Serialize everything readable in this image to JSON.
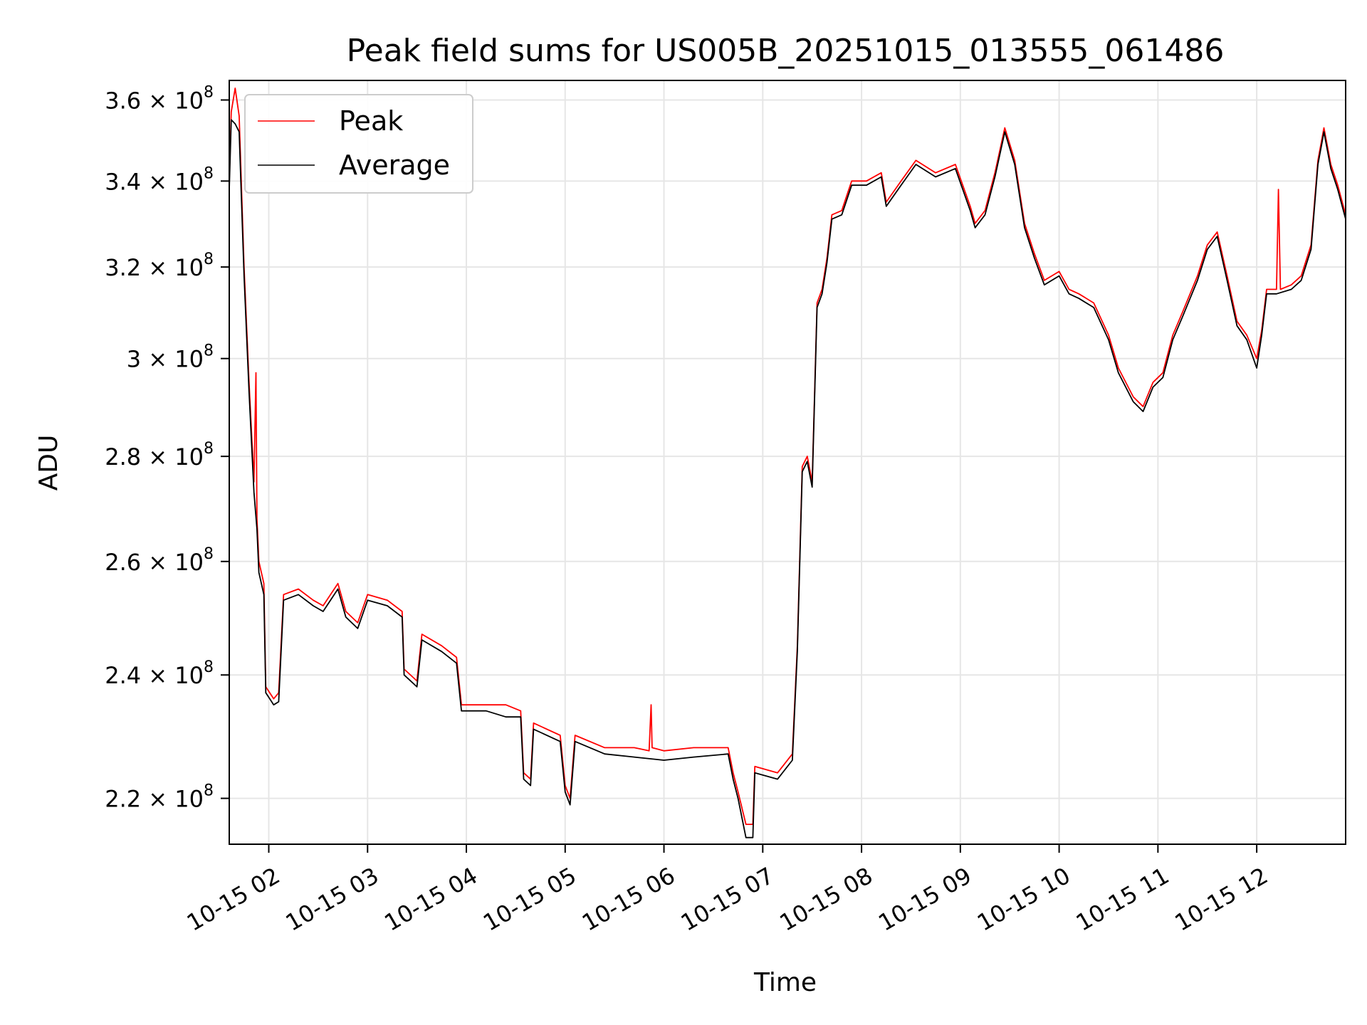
{
  "chart_data": {
    "type": "line",
    "title": "Peak field sums for US005B_20251015_013555_061486",
    "xlabel": "Time",
    "ylabel": "ADU",
    "yscale": "log",
    "xlim": [
      1.6,
      12.9
    ],
    "ylim": [
      213000000.0,
      365000000.0
    ],
    "grid": true,
    "legend_position": "upper-left",
    "x_ticks": [
      {
        "value": 2,
        "label": "10-15 02"
      },
      {
        "value": 3,
        "label": "10-15 03"
      },
      {
        "value": 4,
        "label": "10-15 04"
      },
      {
        "value": 5,
        "label": "10-15 05"
      },
      {
        "value": 6,
        "label": "10-15 06"
      },
      {
        "value": 7,
        "label": "10-15 07"
      },
      {
        "value": 8,
        "label": "10-15 08"
      },
      {
        "value": 9,
        "label": "10-15 09"
      },
      {
        "value": 10,
        "label": "10-15 10"
      },
      {
        "value": 11,
        "label": "10-15 11"
      },
      {
        "value": 12,
        "label": "10-15 12"
      }
    ],
    "y_ticks": [
      {
        "value": 220000000.0,
        "base": "2.2 × 10",
        "exp": "8"
      },
      {
        "value": 240000000.0,
        "base": "2.4 × 10",
        "exp": "8"
      },
      {
        "value": 260000000.0,
        "base": "2.6 × 10",
        "exp": "8"
      },
      {
        "value": 280000000.0,
        "base": "2.8 × 10",
        "exp": "8"
      },
      {
        "value": 300000000.0,
        "base": "3 × 10",
        "exp": "8"
      },
      {
        "value": 320000000.0,
        "base": "3.2 × 10",
        "exp": "8"
      },
      {
        "value": 340000000.0,
        "base": "3.4 × 10",
        "exp": "8"
      },
      {
        "value": 360000000.0,
        "base": "3.6 × 10",
        "exp": "8"
      }
    ],
    "series": [
      {
        "name": "Peak",
        "color": "#ff0000",
        "points": [
          [
            1.6,
            340000000.0
          ],
          [
            1.62,
            357000000.0
          ],
          [
            1.66,
            363000000.0
          ],
          [
            1.7,
            356000000.0
          ],
          [
            1.75,
            320000000.0
          ],
          [
            1.8,
            295000000.0
          ],
          [
            1.85,
            275000000.0
          ],
          [
            1.87,
            297000000.0
          ],
          [
            1.88,
            268000000.0
          ],
          [
            1.9,
            260000000.0
          ],
          [
            1.95,
            256000000.0
          ],
          [
            1.97,
            238000000.0
          ],
          [
            2.05,
            236000000.0
          ],
          [
            2.1,
            237000000.0
          ],
          [
            2.15,
            254000000.0
          ],
          [
            2.3,
            255000000.0
          ],
          [
            2.45,
            253000000.0
          ],
          [
            2.55,
            252000000.0
          ],
          [
            2.7,
            256000000.0
          ],
          [
            2.78,
            251000000.0
          ],
          [
            2.9,
            249000000.0
          ],
          [
            3.0,
            254000000.0
          ],
          [
            3.2,
            253000000.0
          ],
          [
            3.35,
            251000000.0
          ],
          [
            3.37,
            241000000.0
          ],
          [
            3.5,
            239000000.0
          ],
          [
            3.55,
            247000000.0
          ],
          [
            3.75,
            245000000.0
          ],
          [
            3.9,
            243000000.0
          ],
          [
            3.95,
            235000000.0
          ],
          [
            4.2,
            235000000.0
          ],
          [
            4.4,
            235000000.0
          ],
          [
            4.55,
            234000000.0
          ],
          [
            4.58,
            224000000.0
          ],
          [
            4.65,
            223000000.0
          ],
          [
            4.68,
            232000000.0
          ],
          [
            4.95,
            230000000.0
          ],
          [
            5.0,
            222000000.0
          ],
          [
            5.05,
            220000000.0
          ],
          [
            5.1,
            230000000.0
          ],
          [
            5.4,
            228000000.0
          ],
          [
            5.7,
            228000000.0
          ],
          [
            5.85,
            227500000.0
          ],
          [
            5.87,
            235000000.0
          ],
          [
            5.88,
            228000000.0
          ],
          [
            6.0,
            227500000.0
          ],
          [
            6.3,
            228000000.0
          ],
          [
            6.65,
            228000000.0
          ],
          [
            6.7,
            224000000.0
          ],
          [
            6.75,
            221000000.0
          ],
          [
            6.83,
            216000000.0
          ],
          [
            6.9,
            216000000.0
          ],
          [
            6.92,
            225000000.0
          ],
          [
            7.15,
            224000000.0
          ],
          [
            7.3,
            227000000.0
          ],
          [
            7.35,
            245000000.0
          ],
          [
            7.4,
            278000000.0
          ],
          [
            7.45,
            280000000.0
          ],
          [
            7.5,
            275000000.0
          ],
          [
            7.55,
            312000000.0
          ],
          [
            7.6,
            315000000.0
          ],
          [
            7.65,
            322000000.0
          ],
          [
            7.7,
            332000000.0
          ],
          [
            7.8,
            333000000.0
          ],
          [
            7.9,
            340000000.0
          ],
          [
            8.05,
            340000000.0
          ],
          [
            8.2,
            342000000.0
          ],
          [
            8.25,
            335000000.0
          ],
          [
            8.4,
            340000000.0
          ],
          [
            8.55,
            345000000.0
          ],
          [
            8.75,
            342000000.0
          ],
          [
            8.95,
            344000000.0
          ],
          [
            9.1,
            334000000.0
          ],
          [
            9.15,
            330000000.0
          ],
          [
            9.25,
            333000000.0
          ],
          [
            9.35,
            342000000.0
          ],
          [
            9.45,
            353000000.0
          ],
          [
            9.55,
            345000000.0
          ],
          [
            9.65,
            330000000.0
          ],
          [
            9.75,
            323000000.0
          ],
          [
            9.85,
            317000000.0
          ],
          [
            10.0,
            319000000.0
          ],
          [
            10.1,
            315000000.0
          ],
          [
            10.2,
            314000000.0
          ],
          [
            10.35,
            312000000.0
          ],
          [
            10.5,
            305000000.0
          ],
          [
            10.6,
            298000000.0
          ],
          [
            10.75,
            292000000.0
          ],
          [
            10.85,
            290000000.0
          ],
          [
            10.95,
            295000000.0
          ],
          [
            11.05,
            297000000.0
          ],
          [
            11.15,
            305000000.0
          ],
          [
            11.25,
            310000000.0
          ],
          [
            11.4,
            318000000.0
          ],
          [
            11.5,
            325000000.0
          ],
          [
            11.6,
            328000000.0
          ],
          [
            11.7,
            318000000.0
          ],
          [
            11.8,
            308000000.0
          ],
          [
            11.9,
            305000000.0
          ],
          [
            12.0,
            300000000.0
          ],
          [
            12.05,
            306000000.0
          ],
          [
            12.1,
            315000000.0
          ],
          [
            12.2,
            315000000.0
          ],
          [
            12.22,
            338000000.0
          ],
          [
            12.24,
            315000000.0
          ],
          [
            12.35,
            316000000.0
          ],
          [
            12.45,
            318000000.0
          ],
          [
            12.55,
            325000000.0
          ],
          [
            12.62,
            345000000.0
          ],
          [
            12.68,
            353000000.0
          ],
          [
            12.75,
            344000000.0
          ],
          [
            12.82,
            339000000.0
          ],
          [
            12.9,
            332000000.0
          ]
        ]
      },
      {
        "name": "Average",
        "color": "#000000",
        "points": [
          [
            1.6,
            338000000.0
          ],
          [
            1.62,
            355000000.0
          ],
          [
            1.66,
            354000000.0
          ],
          [
            1.7,
            352000000.0
          ],
          [
            1.75,
            318000000.0
          ],
          [
            1.8,
            293000000.0
          ],
          [
            1.85,
            273000000.0
          ],
          [
            1.88,
            266000000.0
          ],
          [
            1.9,
            258000000.0
          ],
          [
            1.95,
            254000000.0
          ],
          [
            1.97,
            237000000.0
          ],
          [
            2.05,
            235000000.0
          ],
          [
            2.1,
            235500000.0
          ],
          [
            2.15,
            253000000.0
          ],
          [
            2.3,
            254000000.0
          ],
          [
            2.45,
            252000000.0
          ],
          [
            2.55,
            251000000.0
          ],
          [
            2.7,
            255000000.0
          ],
          [
            2.78,
            250000000.0
          ],
          [
            2.9,
            248000000.0
          ],
          [
            3.0,
            253000000.0
          ],
          [
            3.2,
            252000000.0
          ],
          [
            3.35,
            250000000.0
          ],
          [
            3.37,
            240000000.0
          ],
          [
            3.5,
            238000000.0
          ],
          [
            3.55,
            246000000.0
          ],
          [
            3.75,
            244000000.0
          ],
          [
            3.9,
            242000000.0
          ],
          [
            3.95,
            234000000.0
          ],
          [
            4.2,
            234000000.0
          ],
          [
            4.4,
            233000000.0
          ],
          [
            4.55,
            233000000.0
          ],
          [
            4.58,
            223000000.0
          ],
          [
            4.65,
            222000000.0
          ],
          [
            4.68,
            231000000.0
          ],
          [
            4.95,
            229000000.0
          ],
          [
            5.0,
            221000000.0
          ],
          [
            5.05,
            219000000.0
          ],
          [
            5.1,
            229000000.0
          ],
          [
            5.4,
            227000000.0
          ],
          [
            5.7,
            226500000.0
          ],
          [
            6.0,
            226000000.0
          ],
          [
            6.3,
            226500000.0
          ],
          [
            6.65,
            227000000.0
          ],
          [
            6.7,
            223000000.0
          ],
          [
            6.75,
            220000000.0
          ],
          [
            6.83,
            214000000.0
          ],
          [
            6.9,
            214000000.0
          ],
          [
            6.92,
            224000000.0
          ],
          [
            7.15,
            223000000.0
          ],
          [
            7.3,
            226000000.0
          ],
          [
            7.35,
            244000000.0
          ],
          [
            7.4,
            277000000.0
          ],
          [
            7.45,
            279000000.0
          ],
          [
            7.5,
            274000000.0
          ],
          [
            7.55,
            311000000.0
          ],
          [
            7.6,
            314000000.0
          ],
          [
            7.65,
            321000000.0
          ],
          [
            7.7,
            331000000.0
          ],
          [
            7.8,
            332000000.0
          ],
          [
            7.9,
            339000000.0
          ],
          [
            8.05,
            339000000.0
          ],
          [
            8.2,
            341000000.0
          ],
          [
            8.25,
            334000000.0
          ],
          [
            8.4,
            339000000.0
          ],
          [
            8.55,
            344000000.0
          ],
          [
            8.75,
            341000000.0
          ],
          [
            8.95,
            343000000.0
          ],
          [
            9.1,
            333000000.0
          ],
          [
            9.15,
            329000000.0
          ],
          [
            9.25,
            332000000.0
          ],
          [
            9.35,
            341000000.0
          ],
          [
            9.45,
            352000000.0
          ],
          [
            9.55,
            344000000.0
          ],
          [
            9.65,
            329000000.0
          ],
          [
            9.75,
            322000000.0
          ],
          [
            9.85,
            316000000.0
          ],
          [
            10.0,
            318000000.0
          ],
          [
            10.1,
            314000000.0
          ],
          [
            10.2,
            313000000.0
          ],
          [
            10.35,
            311000000.0
          ],
          [
            10.5,
            304000000.0
          ],
          [
            10.6,
            297000000.0
          ],
          [
            10.75,
            291000000.0
          ],
          [
            10.85,
            289000000.0
          ],
          [
            10.95,
            294000000.0
          ],
          [
            11.05,
            296000000.0
          ],
          [
            11.15,
            304000000.0
          ],
          [
            11.25,
            309000000.0
          ],
          [
            11.4,
            317000000.0
          ],
          [
            11.5,
            324000000.0
          ],
          [
            11.6,
            327000000.0
          ],
          [
            11.7,
            317000000.0
          ],
          [
            11.8,
            307000000.0
          ],
          [
            11.9,
            304000000.0
          ],
          [
            12.0,
            298000000.0
          ],
          [
            12.05,
            305000000.0
          ],
          [
            12.1,
            314000000.0
          ],
          [
            12.2,
            314000000.0
          ],
          [
            12.35,
            315000000.0
          ],
          [
            12.45,
            317000000.0
          ],
          [
            12.55,
            324000000.0
          ],
          [
            12.62,
            344000000.0
          ],
          [
            12.68,
            352000000.0
          ],
          [
            12.75,
            343000000.0
          ],
          [
            12.82,
            338000000.0
          ],
          [
            12.9,
            331000000.0
          ]
        ]
      }
    ]
  }
}
